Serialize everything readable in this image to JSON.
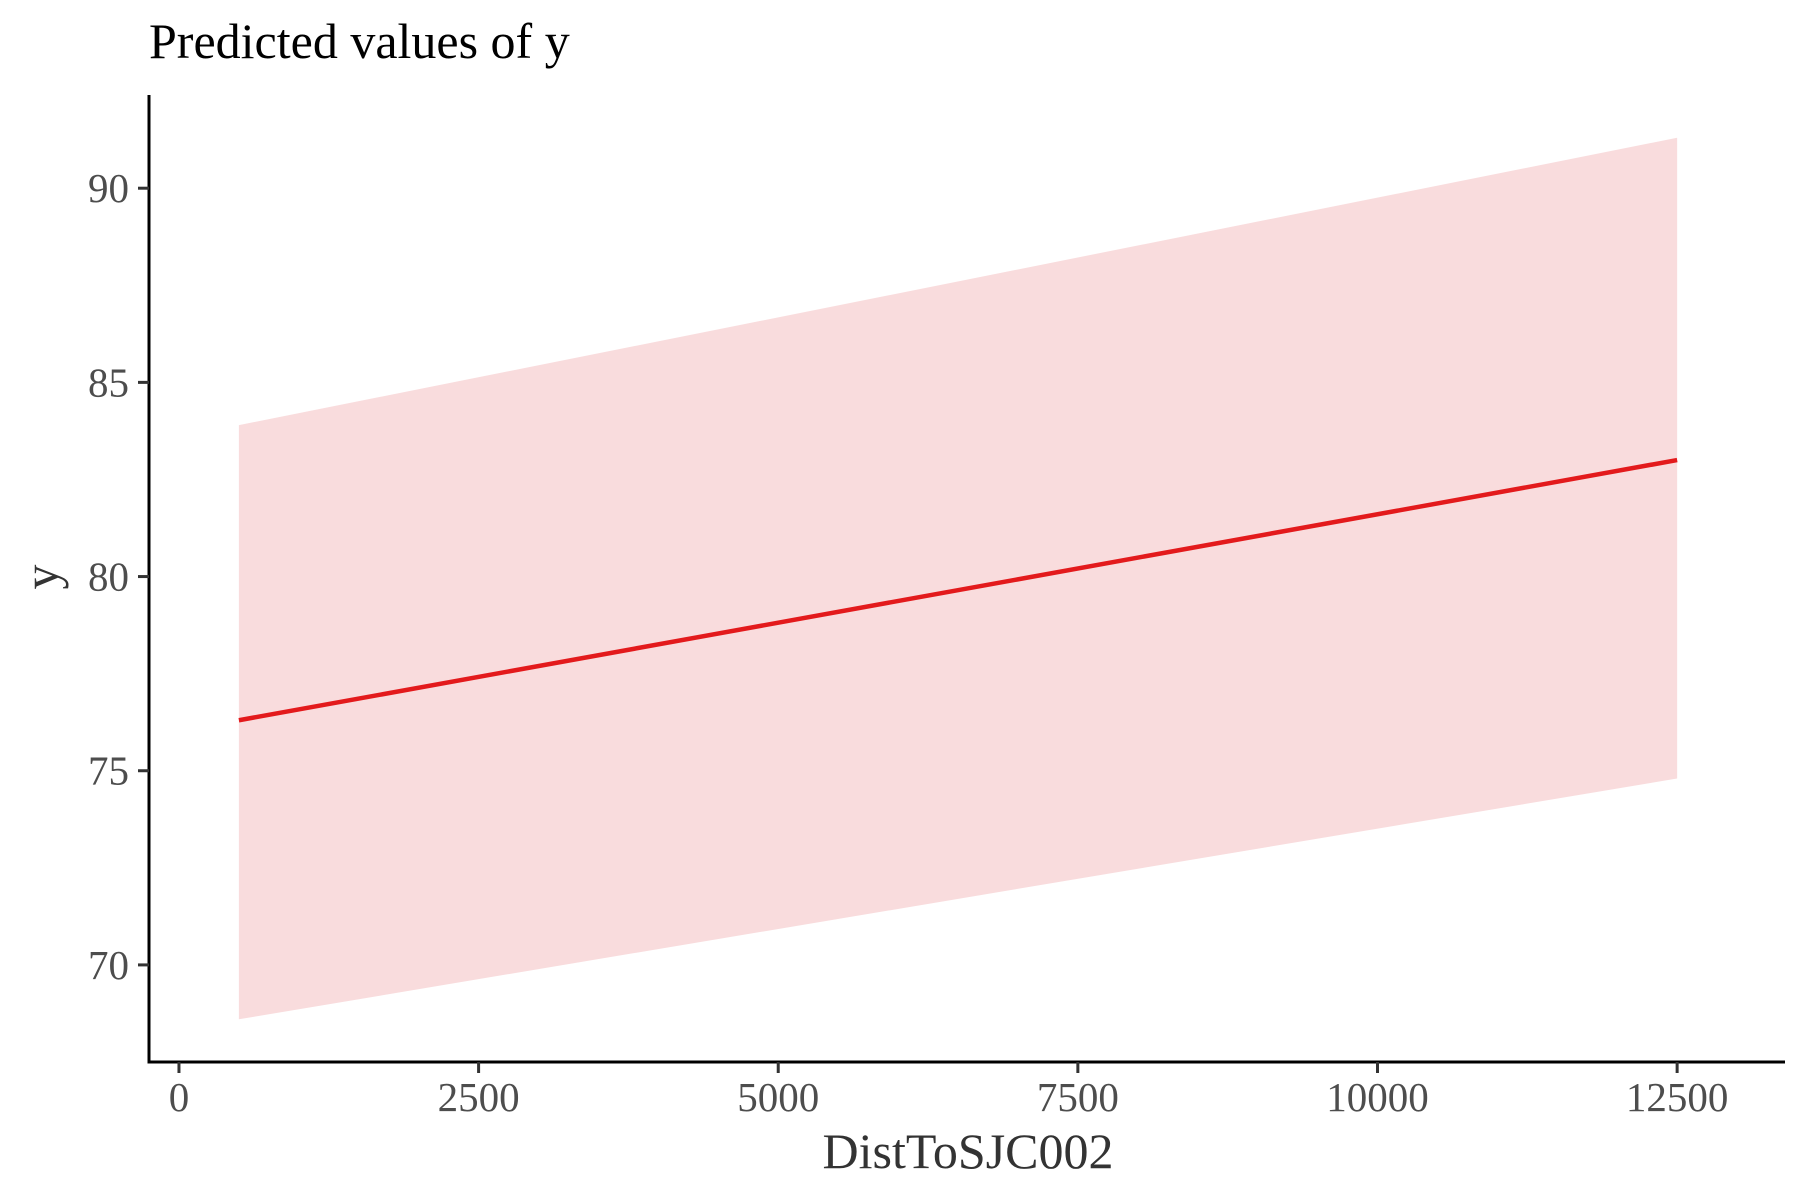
{
  "chart_data": {
    "type": "line",
    "title": "Predicted values of y",
    "xlabel": "DistToSJC002",
    "ylabel": "y",
    "xlim": [
      -250,
      13400
    ],
    "ylim": [
      67.5,
      92.4
    ],
    "x_ticks": [
      0,
      2500,
      5000,
      7500,
      10000,
      12500
    ],
    "x_tick_labels": [
      "0",
      "2500",
      "5000",
      "7500",
      "10000",
      "12500"
    ],
    "y_ticks": [
      70,
      75,
      80,
      85,
      90
    ],
    "y_tick_labels": [
      "70",
      "75",
      "80",
      "85",
      "90"
    ],
    "grid": false,
    "legend": "none",
    "series": [
      {
        "x": [
          500,
          12500
        ],
        "y": [
          76.3,
          83.0
        ],
        "ci_lower": [
          68.6,
          74.8
        ],
        "ci_upper": [
          83.9,
          91.3
        ]
      }
    ],
    "colors": {
      "line": "#e31a1c",
      "ribbon": "#f9dcdd",
      "axis": "#000000"
    }
  }
}
